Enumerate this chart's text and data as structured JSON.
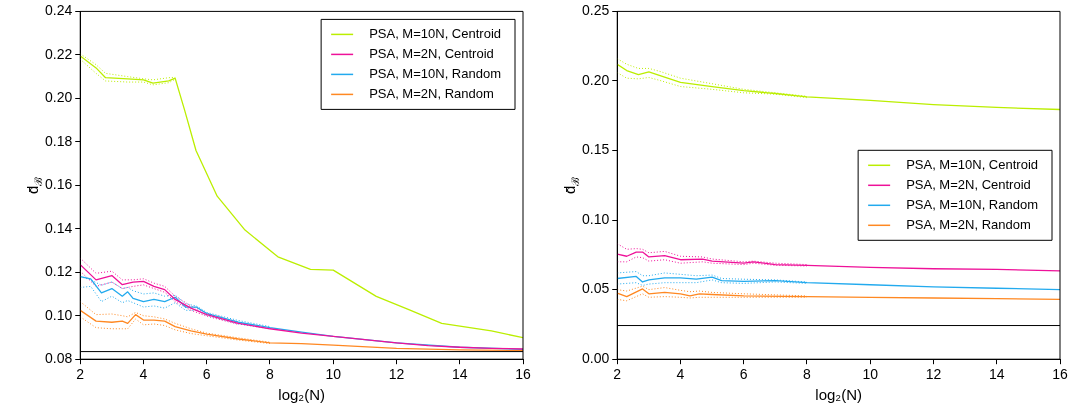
{
  "chart_data": [
    {
      "type": "line",
      "xlabel": "log₂(N)",
      "ylabel": "d̄$_{ℬ}$",
      "xlim": [
        2,
        16
      ],
      "xticks": [
        2,
        4,
        6,
        8,
        10,
        12,
        14,
        16
      ],
      "ylim": [
        0.08,
        0.24
      ],
      "yticks": [
        {
          "value": 0.08,
          "label": "0.08"
        },
        {
          "value": 0.1,
          "label": "0.10"
        },
        {
          "value": 0.12,
          "label": "0.12"
        },
        {
          "value": 0.14,
          "label": "0.14"
        },
        {
          "value": 0.16,
          "label": "0.16"
        },
        {
          "value": 0.18,
          "label": "0.18"
        },
        {
          "value": 0.2,
          "label": "0.20"
        },
        {
          "value": 0.22,
          "label": "0.22"
        },
        {
          "value": 0.24,
          "label": "0.24"
        }
      ],
      "legend": "top right",
      "line_style": "solid",
      "ref_lines": [
        {
          "axis": "y",
          "value": 0.0835,
          "color": "#000000"
        }
      ],
      "series": [
        {
          "name": "PSA, M=10N, Centroid",
          "color": "#bbee00",
          "x": [
            2,
            2.5,
            2.8,
            3.5,
            4,
            4.3,
            4.8,
            5,
            5.3,
            5.66,
            6.33,
            7.21,
            8.25,
            9.28,
            10,
            11.36,
            12.39,
            13.43,
            15,
            16
          ],
          "values": [
            0.2195,
            0.214,
            0.2095,
            0.209,
            0.2085,
            0.207,
            0.208,
            0.2093,
            0.1946,
            0.176,
            0.155,
            0.1394,
            0.1271,
            0.1213,
            0.121,
            0.1089,
            0.1028,
            0.0965,
            0.093,
            0.0899
          ]
        },
        {
          "name": "PSA, M=2N, Centroid",
          "color": "#ee1199",
          "x": [
            2,
            2.5,
            3,
            3.33,
            3.67,
            4,
            4.33,
            4.67,
            5,
            5.5,
            6,
            7,
            8,
            9,
            10,
            11,
            12,
            13,
            14,
            15,
            16
          ],
          "values": [
            0.1235,
            0.1165,
            0.1185,
            0.1143,
            0.1155,
            0.1158,
            0.1135,
            0.112,
            0.1075,
            0.1035,
            0.1005,
            0.0965,
            0.094,
            0.092,
            0.0905,
            0.089,
            0.0875,
            0.0862,
            0.0855,
            0.085,
            0.0847
          ]
        },
        {
          "name": "PSA, M=10N, Random",
          "color": "#22aaee",
          "x": [
            2,
            2.33,
            2.67,
            3,
            3.33,
            3.5,
            3.67,
            4,
            4.33,
            4.67,
            5,
            5.33,
            5.67,
            6,
            7,
            8,
            9,
            10,
            12,
            14,
            16
          ],
          "values": [
            0.118,
            0.117,
            0.1105,
            0.1125,
            0.109,
            0.111,
            0.108,
            0.1065,
            0.1075,
            0.1065,
            0.1085,
            0.104,
            0.104,
            0.101,
            0.097,
            0.0945,
            0.0925,
            0.0905,
            0.0875,
            0.0855,
            0.0845
          ]
        },
        {
          "name": "PSA, M=2N, Random",
          "color": "#ff8822",
          "x": [
            2,
            2.5,
            3,
            3.33,
            3.5,
            3.75,
            4,
            4.33,
            4.67,
            5,
            5.5,
            6,
            7,
            8,
            9,
            10,
            12,
            14,
            16
          ],
          "values": [
            0.1025,
            0.0975,
            0.097,
            0.0975,
            0.0965,
            0.1005,
            0.098,
            0.098,
            0.0975,
            0.095,
            0.093,
            0.0915,
            0.0893,
            0.0875,
            0.0872,
            0.0865,
            0.085,
            0.0843,
            0.084
          ]
        },
        {
          "color": "#bbee00",
          "line_style": "dotted",
          "x": [
            2,
            2.5,
            2.8,
            3.5,
            4,
            4.3,
            4.8,
            5
          ],
          "values": [
            0.2205,
            0.2155,
            0.2115,
            0.21,
            0.209,
            0.2085,
            0.2095,
            0.2097
          ]
        },
        {
          "color": "#bbee00",
          "line_style": "dotted",
          "x": [
            2,
            2.5,
            2.8,
            3.5,
            4,
            4.3,
            4.8,
            5
          ],
          "values": [
            0.218,
            0.2115,
            0.208,
            0.2075,
            0.2075,
            0.2062,
            0.2072,
            0.2088
          ]
        },
        {
          "color": "#ee1199",
          "line_style": "dotted",
          "x": [
            2,
            2.5,
            3,
            3.33,
            3.67,
            4,
            4.33,
            4.67,
            5,
            5.5,
            6,
            7
          ],
          "values": [
            0.1265,
            0.1195,
            0.1205,
            0.1165,
            0.1165,
            0.117,
            0.115,
            0.1135,
            0.109,
            0.1045,
            0.1012,
            0.097
          ]
        },
        {
          "color": "#ee1199",
          "line_style": "dotted",
          "x": [
            2,
            2.5,
            3,
            3.33,
            3.67,
            4,
            4.33,
            4.67,
            5,
            5.5,
            6,
            7
          ],
          "values": [
            0.1205,
            0.1135,
            0.1155,
            0.1125,
            0.1135,
            0.1142,
            0.1125,
            0.1108,
            0.1065,
            0.1025,
            0.0998,
            0.096
          ]
        },
        {
          "color": "#22aaee",
          "line_style": "dotted",
          "x": [
            2,
            2.33,
            2.67,
            3,
            3.33,
            3.5,
            3.67,
            4,
            4.33,
            4.67,
            5,
            5.33,
            5.67,
            6,
            7,
            8
          ],
          "values": [
            0.118,
            0.1165,
            0.114,
            0.1155,
            0.1125,
            0.113,
            0.1115,
            0.11,
            0.1105,
            0.109,
            0.1095,
            0.1055,
            0.1045,
            0.1015,
            0.0978,
            0.095
          ]
        },
        {
          "color": "#22aaee",
          "line_style": "dotted",
          "x": [
            2,
            2.33,
            2.67,
            3,
            3.33,
            3.5,
            3.67,
            4,
            4.33,
            4.67,
            5,
            5.33,
            5.67,
            6,
            7,
            8
          ],
          "values": [
            0.113,
            0.1135,
            0.1065,
            0.109,
            0.106,
            0.107,
            0.106,
            0.104,
            0.1045,
            0.1035,
            0.106,
            0.1025,
            0.1025,
            0.1002,
            0.0962,
            0.094
          ]
        },
        {
          "color": "#ff8822",
          "line_style": "dotted",
          "x": [
            2,
            2.5,
            3,
            3.33,
            3.5,
            3.75,
            4,
            4.33,
            4.67,
            5,
            5.5,
            6,
            7,
            8
          ],
          "values": [
            0.1065,
            0.1005,
            0.1008,
            0.1,
            0.0995,
            0.1015,
            0.1,
            0.0995,
            0.0985,
            0.0965,
            0.094,
            0.092,
            0.0898,
            0.0878
          ]
        },
        {
          "color": "#ff8822",
          "line_style": "dotted",
          "x": [
            2,
            2.5,
            3,
            3.33,
            3.5,
            3.75,
            4,
            4.33,
            4.67,
            5,
            5.5,
            6,
            7,
            8
          ],
          "values": [
            0.0995,
            0.0945,
            0.094,
            0.094,
            0.094,
            0.0985,
            0.0958,
            0.0962,
            0.0955,
            0.0935,
            0.0918,
            0.0908,
            0.0888,
            0.0872
          ]
        }
      ]
    },
    {
      "type": "line",
      "xlabel": "log₂(N)",
      "ylabel": "d̄$_{ℬ}$",
      "xlim": [
        2,
        16
      ],
      "xticks": [
        2,
        4,
        6,
        8,
        10,
        12,
        14,
        16
      ],
      "ylim": [
        0,
        0.25
      ],
      "yticks": [
        {
          "value": 0,
          "label": "0.00"
        },
        {
          "value": 0.05,
          "label": "0.05"
        },
        {
          "value": 0.1,
          "label": "0.10"
        },
        {
          "value": 0.15,
          "label": "0.15"
        },
        {
          "value": 0.2,
          "label": "0.20"
        },
        {
          "value": 0.25,
          "label": "0.25"
        }
      ],
      "legend": "right",
      "line_style": "solid",
      "ref_lines": [
        {
          "axis": "y",
          "value": 0.0242,
          "color": "#000000"
        }
      ],
      "series": [
        {
          "name": "PSA, M=10N, Centroid",
          "color": "#bbee00",
          "x": [
            2,
            2.3,
            2.67,
            3,
            3.33,
            4,
            5,
            6,
            7,
            8,
            10,
            12,
            14,
            16
          ],
          "values": [
            0.212,
            0.2075,
            0.2045,
            0.2065,
            0.204,
            0.199,
            0.196,
            0.193,
            0.191,
            0.1885,
            0.186,
            0.183,
            0.181,
            0.1795
          ]
        },
        {
          "name": "PSA, M=2N, Centroid",
          "color": "#ee1199",
          "x": [
            2,
            2.3,
            2.6,
            2.8,
            3,
            3.5,
            4,
            4.7,
            5,
            6,
            6.3,
            7,
            8,
            10,
            12,
            14,
            16
          ],
          "values": [
            0.0755,
            0.074,
            0.077,
            0.077,
            0.0735,
            0.0745,
            0.0715,
            0.072,
            0.0705,
            0.069,
            0.07,
            0.068,
            0.0675,
            0.066,
            0.065,
            0.0645,
            0.0635
          ]
        },
        {
          "name": "PSA, M=10N, Random",
          "color": "#22aaee",
          "x": [
            2,
            2.6,
            2.8,
            3,
            3.5,
            4,
            4.5,
            5,
            5.3,
            6,
            7,
            8,
            10,
            12,
            14,
            16
          ],
          "values": [
            0.058,
            0.0595,
            0.0555,
            0.057,
            0.0585,
            0.0585,
            0.0575,
            0.059,
            0.0565,
            0.056,
            0.0565,
            0.055,
            0.0535,
            0.052,
            0.051,
            0.05
          ]
        },
        {
          "name": "PSA, M=2N, Random",
          "color": "#ff8822",
          "x": [
            2,
            2.3,
            2.8,
            3,
            3.5,
            4,
            4.3,
            4.6,
            5,
            6,
            8,
            10,
            12,
            14,
            16
          ],
          "values": [
            0.0475,
            0.045,
            0.0505,
            0.047,
            0.048,
            0.047,
            0.0455,
            0.047,
            0.0465,
            0.0455,
            0.045,
            0.0445,
            0.044,
            0.0435,
            0.043
          ]
        },
        {
          "color": "#bbee00",
          "line_style": "dotted",
          "x": [
            2,
            2.3,
            2.67,
            3,
            3.33,
            4,
            5,
            6,
            7,
            8
          ],
          "values": [
            0.216,
            0.212,
            0.209,
            0.209,
            0.207,
            0.202,
            0.198,
            0.194,
            0.1915,
            0.189
          ]
        },
        {
          "color": "#bbee00",
          "line_style": "dotted",
          "x": [
            2,
            2.3,
            2.67,
            3,
            3.33,
            4,
            5,
            6,
            7,
            8
          ],
          "values": [
            0.206,
            0.202,
            0.2015,
            0.2025,
            0.2005,
            0.196,
            0.194,
            0.1915,
            0.1905,
            0.188
          ]
        },
        {
          "color": "#ee1199",
          "line_style": "dotted",
          "x": [
            2,
            2.3,
            2.6,
            2.8,
            3,
            3.5,
            4,
            4.7,
            5,
            6,
            6.3,
            7,
            8
          ],
          "values": [
            0.083,
            0.079,
            0.0795,
            0.079,
            0.0765,
            0.0775,
            0.074,
            0.0735,
            0.072,
            0.07,
            0.0705,
            0.069,
            0.068
          ]
        },
        {
          "color": "#ee1199",
          "line_style": "dotted",
          "x": [
            2,
            2.3,
            2.6,
            2.8,
            3,
            3.5,
            4,
            4.7,
            5,
            6,
            6.3,
            7,
            8
          ],
          "values": [
            0.07,
            0.07,
            0.0735,
            0.073,
            0.0705,
            0.0715,
            0.069,
            0.07,
            0.069,
            0.068,
            0.069,
            0.0675,
            0.067
          ]
        },
        {
          "color": "#22aaee",
          "line_style": "dotted",
          "x": [
            2,
            2.6,
            2.8,
            3,
            3.5,
            4,
            4.5,
            5,
            5.3,
            6,
            7,
            8
          ],
          "values": [
            0.062,
            0.063,
            0.06,
            0.06,
            0.062,
            0.061,
            0.06,
            0.0605,
            0.058,
            0.0575,
            0.057,
            0.0555
          ]
        },
        {
          "color": "#22aaee",
          "line_style": "dotted",
          "x": [
            2,
            2.6,
            2.8,
            3,
            3.5,
            4,
            4.5,
            5,
            5.3,
            6,
            7,
            8
          ],
          "values": [
            0.054,
            0.055,
            0.053,
            0.054,
            0.055,
            0.055,
            0.055,
            0.057,
            0.055,
            0.0545,
            0.0555,
            0.0545
          ]
        },
        {
          "color": "#ff8822",
          "line_style": "dotted",
          "x": [
            2,
            2.3,
            2.8,
            3,
            3.5,
            4,
            4.3,
            4.6,
            5,
            6,
            8
          ],
          "values": [
            0.05,
            0.049,
            0.0525,
            0.05,
            0.0515,
            0.0495,
            0.0485,
            0.049,
            0.048,
            0.047,
            0.0455
          ]
        },
        {
          "color": "#ff8822",
          "line_style": "dotted",
          "x": [
            2,
            2.3,
            2.8,
            3,
            3.5,
            4,
            4.3,
            4.6,
            5,
            6,
            8
          ],
          "values": [
            0.043,
            0.042,
            0.047,
            0.0445,
            0.045,
            0.0445,
            0.044,
            0.0445,
            0.0445,
            0.0445,
            0.0445
          ]
        }
      ]
    }
  ]
}
